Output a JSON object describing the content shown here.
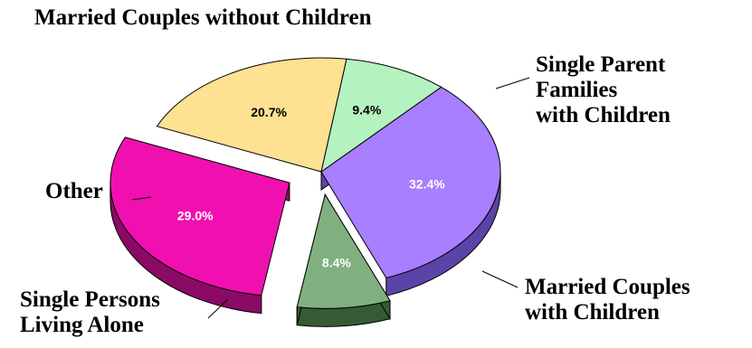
{
  "chart_data": {
    "type": "pie",
    "style": "3d-exploded",
    "slices": [
      {
        "label": [
          "Married Couples without Children"
        ],
        "value": 32.4,
        "display": "32.4%",
        "color": "#a87ffe",
        "side_color": "#5a44a8",
        "exploded": false,
        "label_color": "#ffffff"
      },
      {
        "label": [
          "Single Parent",
          "Families",
          "with Children"
        ],
        "value": 8.4,
        "display": "8.4%",
        "color": "#80b080",
        "side_color": "#355a35",
        "exploded": true,
        "label_color": "#ffffff"
      },
      {
        "label": [
          "Married Couples",
          "with Children"
        ],
        "value": 29.0,
        "display": "29.0%",
        "color": "#f010b0",
        "side_color": "#8a0a66",
        "exploded": true,
        "label_color": "#ffffff"
      },
      {
        "label": [
          "Single Persons",
          "Living Alone"
        ],
        "value": 20.7,
        "display": "20.7%",
        "color": "#ffe193",
        "side_color": "#857a4e",
        "exploded": false,
        "label_color": "#000000"
      },
      {
        "label": [
          "Other"
        ],
        "value": 9.4,
        "display": "9.4%",
        "color": "#b4f2c0",
        "side_color": "#5c7862",
        "exploded": false,
        "label_color": "#000000"
      }
    ]
  }
}
